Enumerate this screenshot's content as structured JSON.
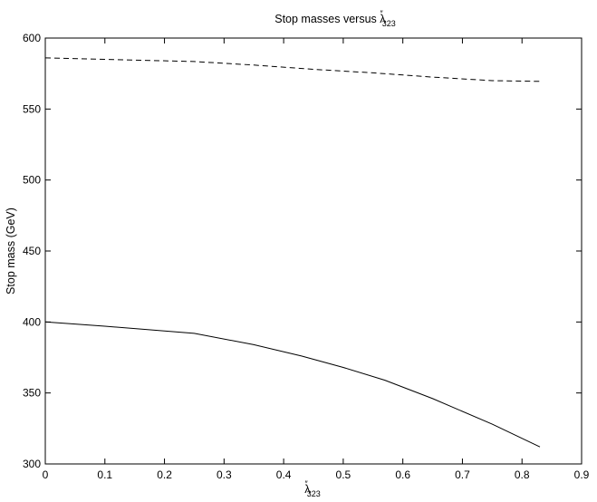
{
  "chart_data": {
    "type": "line",
    "title": {
      "main": "Stop masses versus ",
      "symbol": "λ",
      "superscript": "″",
      "subscript": "323"
    },
    "xlabel": {
      "symbol": "λ",
      "superscript": "″",
      "subscript": "323"
    },
    "ylabel": "Stop mass (GeV)",
    "xlim": [
      0,
      0.9
    ],
    "ylim": [
      300,
      600
    ],
    "x_ticks": [
      "0",
      "0.1",
      "0.2",
      "0.3",
      "0.4",
      "0.5",
      "0.6",
      "0.7",
      "0.8",
      "0.9"
    ],
    "y_ticks": [
      "300",
      "350",
      "400",
      "450",
      "500",
      "550",
      "600"
    ],
    "grid": false,
    "legend": "none",
    "series": [
      {
        "style": "dashed",
        "color": "#000000",
        "x": [
          0,
          0.1,
          0.25,
          0.35,
          0.45,
          0.55,
          0.65,
          0.75,
          0.83
        ],
        "y": [
          586,
          585,
          583.5,
          581,
          578,
          575.5,
          572.5,
          570,
          569.5
        ]
      },
      {
        "style": "solid",
        "color": "#000000",
        "x": [
          0,
          0.1,
          0.25,
          0.35,
          0.43,
          0.5,
          0.57,
          0.65,
          0.75,
          0.83
        ],
        "y": [
          400,
          397,
          392,
          384,
          376,
          368,
          359,
          346,
          328,
          312
        ]
      }
    ]
  }
}
